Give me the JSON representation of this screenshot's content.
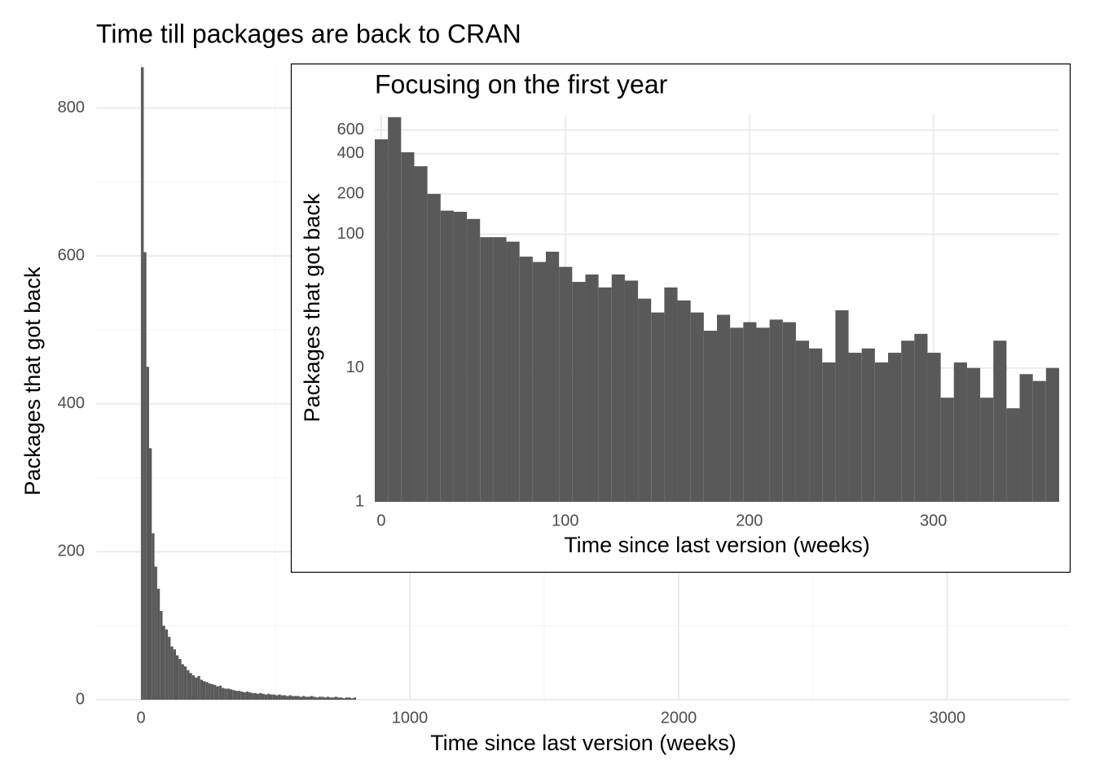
{
  "chart_data": [
    {
      "type": "histogram",
      "title": "Time till packages are back to CRAN",
      "x_label": "Time since last version (weeks)",
      "y_label": "Packages that got back",
      "bins": [
        0,
        10,
        20,
        30,
        40,
        50,
        60,
        70,
        80,
        90,
        100,
        110,
        120,
        130,
        140,
        150,
        160,
        170,
        180,
        190,
        200,
        210,
        220,
        230,
        240,
        250,
        260,
        270,
        280,
        290,
        300,
        310,
        320,
        330,
        340,
        350,
        360,
        370,
        380,
        390,
        400,
        410,
        420,
        430,
        440,
        450,
        460,
        470,
        480,
        490,
        500,
        510,
        520,
        530,
        540,
        550,
        560,
        570,
        580,
        590,
        600,
        610,
        620,
        630,
        640,
        650,
        660,
        670,
        680,
        690,
        700,
        710,
        720,
        730,
        740,
        750,
        760,
        770,
        780,
        790,
        800
      ],
      "values": [
        855,
        605,
        450,
        340,
        225,
        180,
        150,
        120,
        100,
        95,
        85,
        72,
        68,
        60,
        55,
        48,
        45,
        40,
        36,
        33,
        30,
        32,
        27,
        25,
        24,
        22,
        21,
        20,
        18,
        19,
        16,
        15,
        15,
        14,
        13,
        12,
        12,
        11,
        10,
        11,
        10,
        9,
        9,
        8,
        9,
        8,
        7,
        8,
        7,
        7,
        6,
        7,
        6,
        6,
        5,
        6,
        5,
        5,
        5,
        4,
        5,
        4,
        4,
        5,
        4,
        3,
        4,
        4,
        3,
        4,
        3,
        3,
        4,
        3,
        3,
        2,
        3,
        3,
        2,
        3
      ],
      "color": "#595959",
      "xlim": [
        -167,
        3455
      ],
      "xticks": [
        0,
        1000,
        2000,
        3000
      ],
      "ylim": [
        0,
        860
      ],
      "yticks": [
        0,
        200,
        400,
        600,
        800
      ],
      "grid": true
    },
    {
      "type": "histogram",
      "title": "Focusing on the first year",
      "x_label": "Time since last version (weeks)",
      "y_label": "Packages that got back",
      "bins": [
        -3.5,
        3.65,
        10.8,
        17.95,
        25.1,
        32.25,
        39.4,
        46.55,
        53.7,
        60.85,
        68,
        75.15,
        82.3,
        89.45,
        96.6,
        103.75,
        110.9,
        118.05,
        125.2,
        132.35,
        139.5,
        146.65,
        153.8,
        160.95,
        168.1,
        175.25,
        182.4,
        189.55,
        196.7,
        203.85,
        211,
        218.15,
        225.3,
        232.45,
        239.6,
        246.75,
        253.9,
        261.05,
        268.2,
        275.35,
        282.5,
        289.65,
        296.8,
        303.95,
        311.1,
        318.25,
        325.4,
        332.55,
        339.7,
        346.85,
        354,
        361.15,
        368.3
      ],
      "values": [
        512,
        750,
        410,
        322,
        200,
        150,
        147,
        130,
        95,
        95,
        88,
        68,
        62,
        74,
        57,
        44,
        50,
        40,
        50,
        45,
        33,
        26,
        40,
        32,
        26,
        19,
        25,
        20,
        22,
        20,
        23,
        22,
        16,
        14,
        11,
        27,
        13,
        14,
        11,
        13,
        16,
        18,
        13,
        6,
        11,
        10,
        6,
        16,
        5,
        9,
        8,
        10
      ],
      "color": "#595959",
      "log_y": true,
      "xlim": [
        -3.5,
        368.3
      ],
      "xticks": [
        0,
        100,
        200,
        300
      ],
      "ylim": [
        1,
        780
      ],
      "yticks": [
        1,
        10,
        100,
        200,
        400,
        600
      ],
      "grid": true
    }
  ]
}
